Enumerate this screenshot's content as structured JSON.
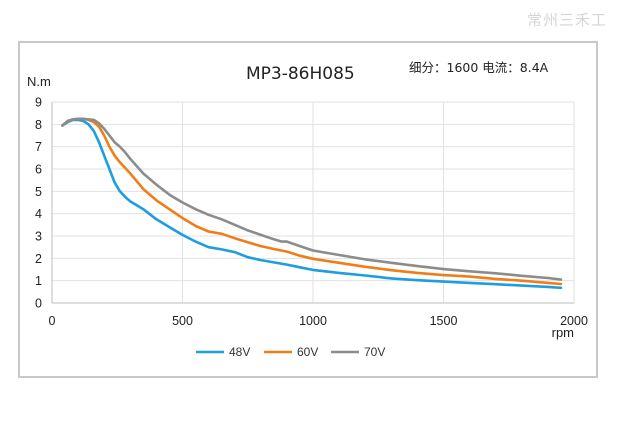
{
  "watermark": "常州三禾工",
  "chart_data": {
    "type": "line",
    "title": "MP3-86H085",
    "subtitle": "细分：1600 电流：8.4A",
    "ylabel": "N.m",
    "xlabel": "rpm",
    "xlim": [
      0,
      2000
    ],
    "ylim": [
      0,
      9
    ],
    "xticks": [
      "0",
      "500",
      "1000",
      "1500",
      "2000"
    ],
    "yticks": [
      "0",
      "1",
      "2",
      "3",
      "4",
      "5",
      "6",
      "7",
      "8",
      "9"
    ],
    "grid": true,
    "legend_position": "bottom-center",
    "series": [
      {
        "name": "48V",
        "color": "#1e9de0",
        "x": [
          40,
          60,
          80,
          100,
          120,
          140,
          160,
          180,
          200,
          220,
          240,
          260,
          280,
          300,
          350,
          400,
          450,
          500,
          550,
          600,
          650,
          700,
          750,
          800,
          850,
          900,
          950,
          1000,
          1100,
          1200,
          1300,
          1400,
          1500,
          1600,
          1700,
          1800,
          1900,
          1950
        ],
        "y": [
          7.95,
          8.1,
          8.2,
          8.2,
          8.15,
          8.0,
          7.7,
          7.2,
          6.6,
          6.0,
          5.4,
          5.0,
          4.75,
          4.55,
          4.2,
          3.75,
          3.4,
          3.05,
          2.75,
          2.5,
          2.4,
          2.28,
          2.05,
          1.92,
          1.82,
          1.72,
          1.6,
          1.48,
          1.35,
          1.23,
          1.1,
          1.02,
          0.96,
          0.9,
          0.84,
          0.78,
          0.72,
          0.68
        ]
      },
      {
        "name": "60V",
        "color": "#f07d1a",
        "x": [
          40,
          60,
          80,
          100,
          120,
          140,
          160,
          180,
          200,
          220,
          240,
          260,
          280,
          300,
          350,
          400,
          450,
          500,
          550,
          600,
          650,
          700,
          750,
          800,
          850,
          900,
          950,
          1000,
          1100,
          1200,
          1300,
          1400,
          1500,
          1600,
          1700,
          1800,
          1900,
          1950
        ],
        "y": [
          7.95,
          8.15,
          8.22,
          8.25,
          8.25,
          8.2,
          8.1,
          7.9,
          7.5,
          7.0,
          6.6,
          6.3,
          6.05,
          5.8,
          5.1,
          4.6,
          4.2,
          3.8,
          3.45,
          3.2,
          3.1,
          2.9,
          2.72,
          2.55,
          2.42,
          2.3,
          2.12,
          1.98,
          1.8,
          1.62,
          1.47,
          1.35,
          1.25,
          1.18,
          1.08,
          1.0,
          0.9,
          0.85
        ]
      },
      {
        "name": "70V",
        "color": "#8c8c8c",
        "x": [
          40,
          60,
          80,
          100,
          120,
          140,
          160,
          180,
          200,
          220,
          240,
          260,
          280,
          300,
          350,
          400,
          450,
          500,
          550,
          600,
          650,
          700,
          750,
          800,
          850,
          880,
          900,
          950,
          1000,
          1100,
          1200,
          1300,
          1400,
          1500,
          1600,
          1700,
          1800,
          1900,
          1950
        ],
        "y": [
          7.95,
          8.15,
          8.22,
          8.25,
          8.25,
          8.22,
          8.2,
          8.05,
          7.8,
          7.5,
          7.2,
          7.0,
          6.75,
          6.45,
          5.8,
          5.3,
          4.85,
          4.5,
          4.2,
          3.95,
          3.75,
          3.5,
          3.25,
          3.05,
          2.85,
          2.75,
          2.75,
          2.55,
          2.35,
          2.15,
          1.95,
          1.8,
          1.65,
          1.52,
          1.42,
          1.33,
          1.22,
          1.12,
          1.05
        ]
      }
    ]
  }
}
